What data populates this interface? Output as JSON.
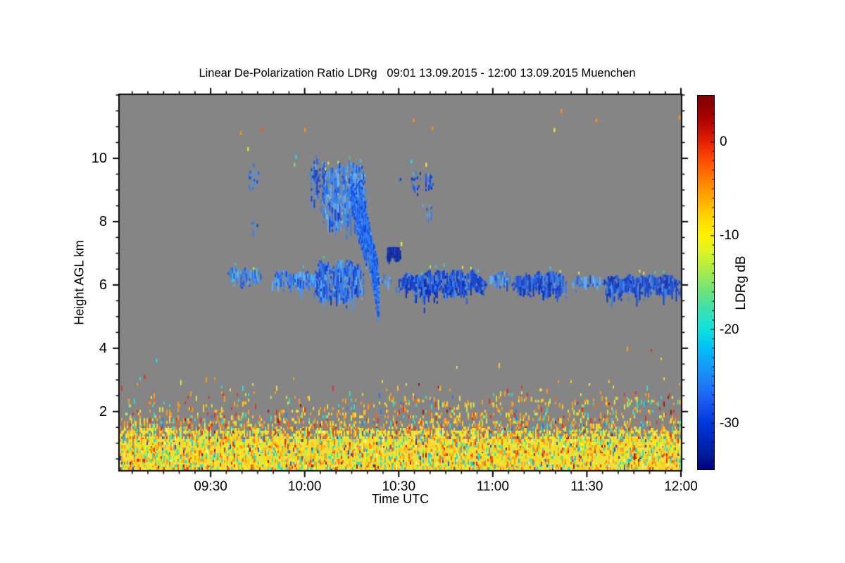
{
  "chart_data": {
    "type": "heatmap",
    "title": "Linear De-Polarization Ratio LDRg   09:01 13.09.2015 - 12:00 13.09.2015 Muenchen",
    "xlabel": "Time UTC",
    "ylabel": "Height AGL km",
    "plot_background_color": "#858585",
    "page_background_color": "#FFFFFF",
    "axis_color": "#000000",
    "x_axis": {
      "start_minute": 541,
      "end_minute": 720,
      "major_ticks": [
        {
          "minute": 570,
          "label": "09:30"
        },
        {
          "minute": 600,
          "label": "10:00"
        },
        {
          "minute": 630,
          "label": "10:30"
        },
        {
          "minute": 660,
          "label": "11:00"
        },
        {
          "minute": 690,
          "label": "11:30"
        },
        {
          "minute": 720,
          "label": "12:00"
        }
      ],
      "minor_step_minutes": 5
    },
    "y_axis": {
      "min_km": 0.15,
      "max_km": 12,
      "major_ticks": [
        {
          "km": 2,
          "label": "2"
        },
        {
          "km": 4,
          "label": "4"
        },
        {
          "km": 6,
          "label": "6"
        },
        {
          "km": 8,
          "label": "8"
        },
        {
          "km": 10,
          "label": "10"
        }
      ],
      "minor_step_km": 0.5
    },
    "colorbar": {
      "label": "LDRg dB",
      "min_db": -35,
      "max_db": 5,
      "major_ticks": [
        {
          "db": 0,
          "label": "0"
        },
        {
          "db": -10,
          "label": "-10"
        },
        {
          "db": -20,
          "label": "-20"
        },
        {
          "db": -30,
          "label": "-30"
        }
      ],
      "minor_step_db": 1,
      "gradient_top_to_bottom": [
        [
          "#800000",
          0
        ],
        [
          "#AA0000",
          0.06
        ],
        [
          "#E62000",
          0.125
        ],
        [
          "#FF4A00",
          0.17
        ],
        [
          "#FF7A00",
          0.22
        ],
        [
          "#FFA500",
          0.27
        ],
        [
          "#FFD200",
          0.32
        ],
        [
          "#FFF200",
          0.375
        ],
        [
          "#D8F428",
          0.42
        ],
        [
          "#A8EC48",
          0.47
        ],
        [
          "#70E47A",
          0.52
        ],
        [
          "#3EE0AC",
          0.57
        ],
        [
          "#10E2DC",
          0.625
        ],
        [
          "#00C4F4",
          0.67
        ],
        [
          "#129EFA",
          0.72
        ],
        [
          "#1F7CF8",
          0.77
        ],
        [
          "#1A58F0",
          0.82
        ],
        [
          "#0038E0",
          0.875
        ],
        [
          "#0028BE",
          0.92
        ],
        [
          "#001C9C",
          0.96
        ],
        [
          "#000080",
          1
        ]
      ]
    },
    "palettes": {
      "bl_dense": [
        [
          "#F0DE3C",
          30
        ],
        [
          "#FFE814",
          14
        ],
        [
          "#FFC81E",
          12
        ],
        [
          "#FF9A1E",
          9
        ],
        [
          "#FF6410",
          5
        ],
        [
          "#E63214",
          3
        ],
        [
          "#A51408",
          1
        ],
        [
          "#C8EE3C",
          10
        ],
        [
          "#78E060",
          4
        ],
        [
          "#32DEC8",
          7
        ],
        [
          "#28B4E8",
          2
        ],
        [
          "#2050E0",
          1
        ],
        [
          "#F7F08C",
          2
        ]
      ],
      "bl_speckle": [
        [
          "#FF9A1E",
          28
        ],
        [
          "#F0DE3C",
          22
        ],
        [
          "#FFC81E",
          12
        ],
        [
          "#E63214",
          9
        ],
        [
          "#32DEC8",
          13
        ],
        [
          "#C8EE3C",
          6
        ],
        [
          "#FF6410",
          5
        ],
        [
          "#2878F0",
          3
        ],
        [
          "#A51408",
          2
        ]
      ],
      "cloud_light": [
        [
          "#4896F4",
          30
        ],
        [
          "#2E7CF2",
          25
        ],
        [
          "#5FB0F7",
          20
        ],
        [
          "#1E5CEA",
          15
        ],
        [
          "#35C8EE",
          4
        ],
        [
          "#1744D8",
          6
        ]
      ],
      "cloud_mid": [
        [
          "#2E7CF2",
          28
        ],
        [
          "#1E5CEA",
          26
        ],
        [
          "#4896F4",
          18
        ],
        [
          "#1040D8",
          18
        ],
        [
          "#5FB0F7",
          6
        ],
        [
          "#0A32C4",
          4
        ]
      ],
      "cloud_bright": [
        [
          "#3E8EF4",
          26
        ],
        [
          "#2E7CF2",
          22
        ],
        [
          "#5AACF7",
          22
        ],
        [
          "#1E5CEA",
          16
        ],
        [
          "#70C0F8",
          8
        ],
        [
          "#1040D8",
          6
        ]
      ],
      "cloud_deep": [
        [
          "#1E5CEA",
          26
        ],
        [
          "#1040D8",
          28
        ],
        [
          "#2E7CF2",
          18
        ],
        [
          "#0A32C4",
          16
        ],
        [
          "#4896F4",
          6
        ],
        [
          "#0626B0",
          6
        ]
      ],
      "cloud_navy": [
        [
          "#0A28B4",
          35
        ],
        [
          "#0620A0",
          30
        ],
        [
          "#1040D8",
          20
        ],
        [
          "#041678",
          15
        ]
      ],
      "edge_specks": [
        [
          "#35D2E8",
          30
        ],
        [
          "#C8EE3C",
          25
        ],
        [
          "#F2E238",
          25
        ],
        [
          "#2BD8B8",
          20
        ]
      ]
    },
    "features": {
      "boundary_layer": {
        "t0": 541,
        "t1": 720,
        "h_base": 0.15,
        "h_top": 1.35,
        "wobble": 0.18,
        "palette": "bl_dense"
      },
      "speckle_bands": [
        {
          "t0": 541,
          "t1": 720,
          "h0": 1.35,
          "h1": 2.05,
          "density0": 0.38,
          "density1": 0.12,
          "palette": "bl_speckle"
        },
        {
          "t0": 541,
          "t1": 720,
          "h0": 2.05,
          "h1": 2.55,
          "density0": 0.1,
          "density1": 0.04,
          "palette": "bl_speckle"
        },
        {
          "t0": 541,
          "t1": 720,
          "h0": 2.55,
          "h1": 3.0,
          "density0": 0.028,
          "density1": 0.008,
          "palette": "bl_speckle"
        },
        {
          "t0": 541,
          "t1": 720,
          "h0": 3.0,
          "h1": 4.2,
          "density0": 0.004,
          "density1": 0.001,
          "palette": "bl_speckle"
        },
        {
          "t0": 620,
          "t1": 720,
          "h0": 2.2,
          "h1": 2.45,
          "density0": 0.1,
          "density1": 0.08,
          "palette": "bl_speckle"
        }
      ],
      "clouds": [
        {
          "t0": 575,
          "t1": 586.5,
          "h_bot": 5.95,
          "h_top": 6.6,
          "density": 0.75,
          "palette": "cloud_light",
          "rag_top": 0.18,
          "rag_bot": 0.22,
          "fringe": 0.15,
          "specks": true
        },
        {
          "t0": 589.5,
          "t1": 604.3,
          "h_bot": 5.7,
          "h_top": 6.55,
          "density": 0.85,
          "palette": "cloud_light",
          "rag_top": 0.16,
          "rag_bot": 0.28,
          "fringe": 0.25,
          "specks": true
        },
        {
          "t0": 602.8,
          "t1": 618.9,
          "h_bot": 5.35,
          "h_top": 6.95,
          "density": 0.93,
          "palette": "cloud_mid",
          "rag_top": 0.3,
          "rag_bot": 0.32,
          "fringe": 0.45,
          "specks": true
        },
        {
          "t0": 621.5,
          "t1": 627.5,
          "h_bot": 5.9,
          "h_top": 6.45,
          "density": 0.5,
          "palette": "cloud_light",
          "rag_top": 0.15,
          "rag_bot": 0.15,
          "fringe": 0.1,
          "specks": true
        },
        {
          "t0": 629,
          "t1": 658,
          "h_bot": 5.45,
          "h_top": 6.55,
          "density": 0.95,
          "palette": "cloud_deep",
          "rag_top": 0.22,
          "rag_bot": 0.38,
          "fringe": 0.55,
          "fringe_mid": true,
          "specks": true
        },
        {
          "t0": 658.5,
          "t1": 665.5,
          "h_bot": 5.9,
          "h_top": 6.45,
          "density": 0.7,
          "palette": "cloud_light",
          "rag_top": 0.12,
          "rag_bot": 0.16,
          "fringe": 0.1,
          "specks": true
        },
        {
          "t0": 666,
          "t1": 683.2,
          "h_bot": 5.55,
          "h_top": 6.5,
          "density": 0.93,
          "palette": "cloud_deep",
          "rag_top": 0.2,
          "rag_bot": 0.3,
          "fringe": 0.3,
          "specks": true
        },
        {
          "t0": 685,
          "t1": 695,
          "h_bot": 5.85,
          "h_top": 6.35,
          "density": 0.78,
          "palette": "cloud_light",
          "rag_top": 0.12,
          "rag_bot": 0.16,
          "fringe": 0.1,
          "specks": true
        },
        {
          "t0": 694.5,
          "t1": 720,
          "h_bot": 5.5,
          "h_top": 6.45,
          "density": 0.95,
          "palette": "cloud_deep",
          "rag_top": 0.22,
          "rag_bot": 0.3,
          "fringe": 0.35,
          "specks": true
        },
        {
          "t0": 581.5,
          "t1": 585.5,
          "h_bot": 8.9,
          "h_top": 9.8,
          "density": 0.38,
          "palette": "cloud_mid",
          "rag_top": 0.2,
          "rag_bot": 0.2,
          "streaky": true
        },
        {
          "t0": 582,
          "t1": 585,
          "h_bot": 7.45,
          "h_top": 8.05,
          "density": 0.22,
          "palette": "cloud_mid",
          "rag_top": 0.15,
          "rag_bot": 0.15,
          "streaky": true
        },
        {
          "t0": 601.5,
          "t1": 607,
          "h_bot": 8.5,
          "h_top": 10.25,
          "density": 0.5,
          "palette": "cloud_mid",
          "rag_top": 0.3,
          "rag_bot": 0.4,
          "streaky": true,
          "fringe": 0.4
        },
        {
          "t0": 605.5,
          "t1": 619.5,
          "h_bot": 7.6,
          "h_top": 10.1,
          "density": 0.9,
          "palette": "cloud_bright",
          "rag_top": 0.35,
          "rag_bot": 0.5,
          "streaky": true,
          "fringe": 0.6,
          "specks": true
        },
        {
          "t0": 629.5,
          "t1": 632.5,
          "h_bot": 9.15,
          "h_top": 9.6,
          "density": 0.3,
          "palette": "cloud_mid",
          "rag_top": 0.15,
          "rag_bot": 0.15,
          "streaky": true
        },
        {
          "t0": 633.5,
          "t1": 637,
          "h_bot": 8.8,
          "h_top": 9.85,
          "density": 0.55,
          "palette": "cloud_mid",
          "rag_top": 0.25,
          "rag_bot": 0.35,
          "streaky": true,
          "fringe": 0.3
        },
        {
          "t0": 638,
          "t1": 641,
          "h_bot": 8.8,
          "h_top": 9.7,
          "density": 0.5,
          "palette": "cloud_mid",
          "rag_top": 0.25,
          "rag_bot": 0.3,
          "streaky": true,
          "fringe": 0.3
        },
        {
          "t0": 637,
          "t1": 640.5,
          "h_bot": 7.9,
          "h_top": 8.65,
          "density": 0.45,
          "palette": "cloud_mid",
          "rag_top": 0.2,
          "rag_bot": 0.3,
          "streaky": true
        },
        {
          "t0": 625.8,
          "t1": 630.5,
          "h_bot": 6.7,
          "h_top": 7.25,
          "density": 0.95,
          "palette": "cloud_navy",
          "rag_top": 0.1,
          "rag_bot": 0.15,
          "fringe": 0.1
        }
      ],
      "streaks": [
        {
          "tA": 614.5,
          "hA": 9.1,
          "tB": 619.5,
          "hB": 7.3,
          "w0": 0.45,
          "w1": 0.7,
          "density": 0.8,
          "palette": "cloud_mid"
        },
        {
          "tA": 617.5,
          "hA": 9.0,
          "tB": 623.5,
          "hB": 5.6,
          "w0": 0.4,
          "w1": 0.9,
          "density": 0.85,
          "palette": "cloud_mid"
        }
      ],
      "dots": [
        {
          "t": 579.6,
          "h": 10.8,
          "color": "#FF8C1E"
        },
        {
          "t": 586.4,
          "h": 10.9,
          "color": "#FF5A14"
        },
        {
          "t": 600.1,
          "h": 10.9,
          "color": "#FF8C1E"
        },
        {
          "t": 581.9,
          "h": 10.3,
          "color": "#C8F03C"
        },
        {
          "t": 597.2,
          "h": 10.05,
          "color": "#35D2E8"
        },
        {
          "t": 596.7,
          "h": 9.8,
          "color": "#6FE06A"
        },
        {
          "t": 583.7,
          "h": 9.78,
          "color": "#2878F0"
        },
        {
          "t": 634.7,
          "h": 11.2,
          "color": "#FF8C1E"
        },
        {
          "t": 640.7,
          "h": 10.95,
          "color": "#FF8C1E"
        },
        {
          "t": 681.8,
          "h": 11.5,
          "color": "#FF8C1E"
        },
        {
          "t": 679.6,
          "h": 10.9,
          "color": "#F2E238"
        },
        {
          "t": 693,
          "h": 11.2,
          "color": "#FF8C1E"
        },
        {
          "t": 634,
          "h": 9.9,
          "color": "#35D2E8"
        },
        {
          "t": 638.7,
          "h": 9.8,
          "color": "#F2E238"
        },
        {
          "t": 719.5,
          "h": 11.3,
          "color": "#FF8C1E"
        },
        {
          "t": 630.8,
          "h": 7.3,
          "color": "#D4F03C"
        },
        {
          "t": 552.7,
          "h": 3.62,
          "color": "#35D2E8"
        },
        {
          "t": 548.9,
          "h": 3.1,
          "color": "#E63214"
        }
      ]
    }
  }
}
